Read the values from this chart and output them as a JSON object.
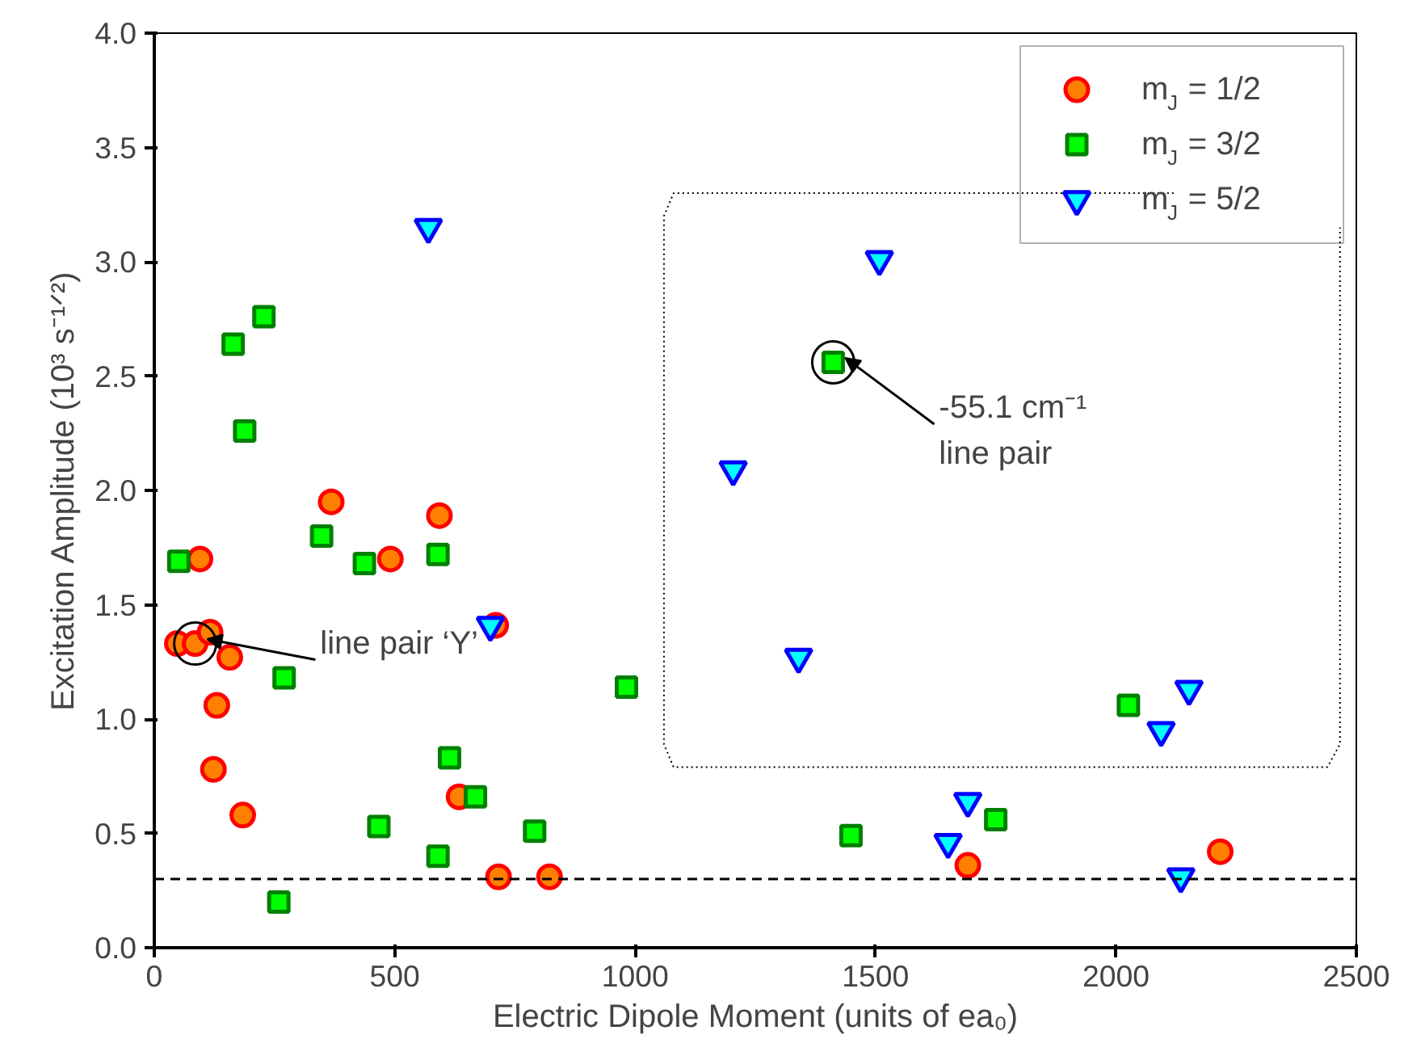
{
  "chart_data": {
    "type": "scatter",
    "xlabel": "Electric Dipole Moment (units of ea₀)",
    "ylabel": "Excitation Amplitude (10³ s⁻¹ᐟ²)",
    "xlim": [
      0,
      2500
    ],
    "xticks": [
      0,
      500,
      1000,
      1500,
      2000,
      2500
    ],
    "ylim": [
      0,
      4.0
    ],
    "yticks": [
      {
        "value": 0,
        "label": "0.0"
      },
      0.5,
      {
        "value": 1,
        "label": "1.0"
      },
      1.5,
      {
        "value": 2,
        "label": "2.0"
      },
      2.5,
      {
        "value": 3,
        "label": "3.0"
      },
      3.5,
      {
        "value": 4,
        "label": "4.0"
      }
    ],
    "grid": false,
    "legend": "top right",
    "series": [
      {
        "name": "m$_{J}$ = 1/2",
        "color": "#ff8000",
        "marker": "circle",
        "x": [
          95,
          48,
          85,
          116,
          157,
          130,
          123,
          184,
          368,
          491,
          593,
          710,
          634,
          716,
          822,
          1692,
          2217
        ],
        "values": [
          1.7,
          1.33,
          1.33,
          1.38,
          1.27,
          1.06,
          0.78,
          0.58,
          1.95,
          1.7,
          1.89,
          1.41,
          0.66,
          0.31,
          0.31,
          0.36,
          0.42
        ]
      },
      {
        "name": "m$_{J}$ = 3/2",
        "color": "#00ff00",
        "marker": "square",
        "x": [
          51,
          164,
          228,
          188,
          348,
          437,
          590,
          270,
          614,
          668,
          467,
          590,
          791,
          259,
          982,
          1412,
          1449,
          1750,
          2026
        ],
        "values": [
          1.69,
          2.64,
          2.76,
          2.26,
          1.8,
          1.68,
          1.72,
          1.18,
          0.83,
          0.66,
          0.53,
          0.4,
          0.51,
          0.2,
          1.14,
          2.56,
          0.49,
          0.56,
          1.06
        ]
      },
      {
        "name": "m$_{J}$ = 5/2",
        "color": "#00ffff",
        "marker": "triangle",
        "x": [
          570,
          699,
          1508,
          1204,
          1340,
          1692,
          1651,
          2152,
          2094,
          2135
        ],
        "values": [
          3.15,
          1.41,
          3.01,
          2.09,
          1.27,
          0.64,
          0.46,
          1.13,
          0.95,
          0.31
        ]
      }
    ],
    "ref_lines": [
      {
        "axis": "y",
        "value": 0.3,
        "line_style": "dashed",
        "color": "#000000"
      }
    ],
    "annotations": [
      {
        "text": "line pair ‘Y’",
        "x": 85,
        "y": 1.33
      },
      {
        "text": "-55.1 cm⁻¹\nline pair",
        "x": 1412,
        "y": 2.56
      }
    ]
  }
}
